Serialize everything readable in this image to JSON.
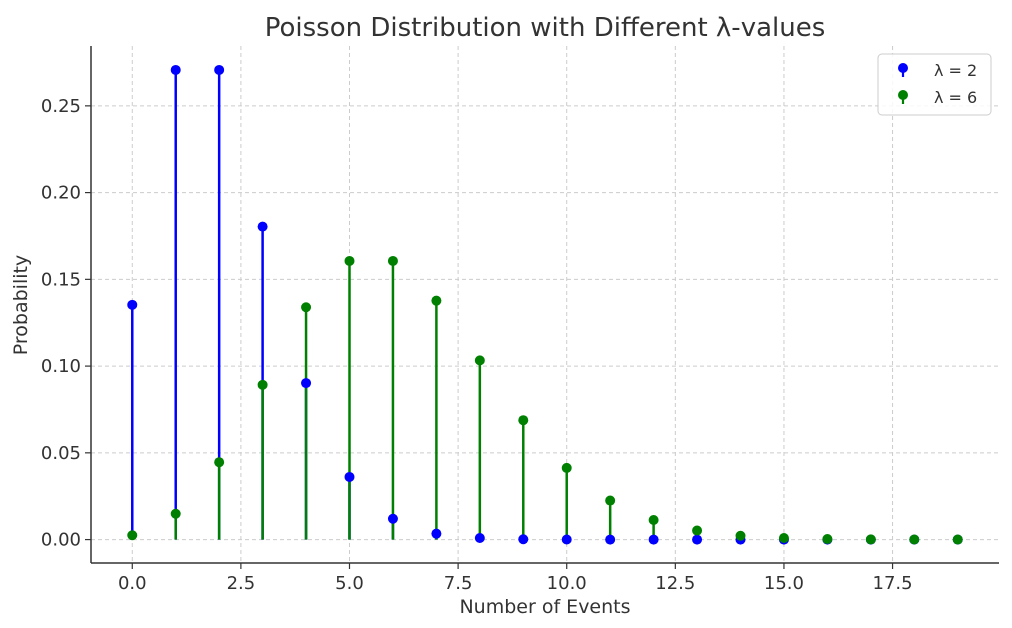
{
  "chart_data": {
    "type": "stem",
    "title": "Poisson Distribution with Different λ-values",
    "xlabel": "Number of Events",
    "ylabel": "Probability",
    "xlim": [
      -0.95,
      19.95
    ],
    "ylim": [
      -0.0135,
      0.2845
    ],
    "xticks": [
      0.0,
      2.5,
      5.0,
      7.5,
      10.0,
      12.5,
      15.0,
      17.5
    ],
    "xtick_labels": [
      "0.0",
      "2.5",
      "5.0",
      "7.5",
      "10.0",
      "12.5",
      "15.0",
      "17.5"
    ],
    "yticks": [
      0.0,
      0.05,
      0.1,
      0.15,
      0.2,
      0.25
    ],
    "ytick_labels": [
      "0.00",
      "0.05",
      "0.10",
      "0.15",
      "0.20",
      "0.25"
    ],
    "grid": true,
    "legend_position": "top-right",
    "x": [
      0,
      1,
      2,
      3,
      4,
      5,
      6,
      7,
      8,
      9,
      10,
      11,
      12,
      13,
      14,
      15,
      16,
      17,
      18,
      19
    ],
    "series": [
      {
        "name": "λ = 2",
        "color": "#0000ff",
        "values": [
          0.1353,
          0.2707,
          0.2707,
          0.1804,
          0.0902,
          0.0361,
          0.012,
          0.0034,
          0.0009,
          0.0002,
          4e-05,
          7e-06,
          1e-06,
          2e-07,
          0.0,
          0.0,
          0.0,
          0.0,
          0.0,
          0.0
        ]
      },
      {
        "name": "λ = 6",
        "color": "#008000",
        "values": [
          0.0025,
          0.0149,
          0.0446,
          0.0892,
          0.1339,
          0.1606,
          0.1606,
          0.1377,
          0.1033,
          0.0688,
          0.0413,
          0.0225,
          0.0113,
          0.0052,
          0.0022,
          0.0009,
          0.0003,
          0.0001,
          4e-05,
          1e-05
        ]
      }
    ]
  }
}
